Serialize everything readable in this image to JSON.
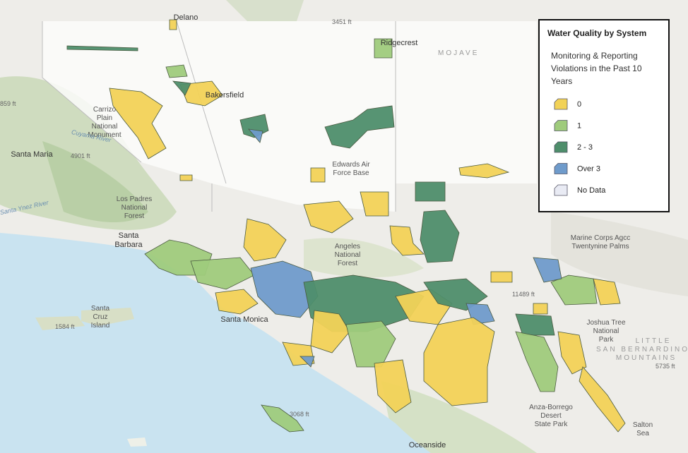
{
  "legend": {
    "title": "Water Quality by System",
    "subtitle": [
      "Monitoring & Reporting",
      "Violations in the Past 10",
      "Years"
    ],
    "items": [
      {
        "label": "0",
        "color": "#f2d257"
      },
      {
        "label": "1",
        "color": "#9fcb7c"
      },
      {
        "label": "2 - 3",
        "color": "#4e8e6b"
      },
      {
        "label": "Over 3",
        "color": "#6f9bcb"
      },
      {
        "label": "No Data",
        "color": "#e9ebf4"
      }
    ]
  },
  "places": {
    "delano": "Delano",
    "ridgecrest": "Ridgecrest",
    "bakersfield": "Bakersfield",
    "mojave": "MOJAVE",
    "carrizo": [
      "Carrizo",
      "Plain",
      "National",
      "Monument"
    ],
    "santa_maria": "Santa Maria",
    "cuyama": "Cuyama River",
    "ynez": "Santa Ynez River",
    "edwards": [
      "Edwards Air",
      "Force Base"
    ],
    "los_padres": [
      "Los Padres",
      "National",
      "Forest"
    ],
    "santa_barbara": [
      "Santa",
      "Barbara"
    ],
    "angeles": [
      "Angeles",
      "National",
      "Forest"
    ],
    "santa_monica": "Santa Monica",
    "santa_cruz": [
      "Santa",
      "Cruz",
      "Island"
    ],
    "oceanside": "Oceanside",
    "marine": [
      "Marine Corps Agcc",
      "Twentynine Palms"
    ],
    "joshua": [
      "Joshua Tree",
      "National",
      "Park"
    ],
    "little_sb": [
      "LITTLE",
      "SAN BERNARDINO",
      "MOUNTAINS"
    ],
    "anza": [
      "Anza-Borrego",
      "Desert",
      "State Park"
    ],
    "salton": [
      "Salton",
      "Sea"
    ],
    "ft_4901": "4901 ft",
    "ft_1584": "1584 ft",
    "ft_859": "859 ft",
    "ft_5735": "5735 ft",
    "ft_11489": "11489 ft",
    "ft_3451": "3451 ft",
    "ft_3068": "3068 ft"
  }
}
